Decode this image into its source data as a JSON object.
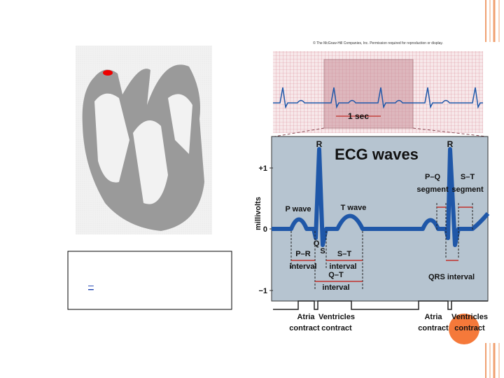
{
  "heart_box": {
    "link": "–"
  },
  "ecg": {
    "credit": "© The McGraw-Hill Companies, Inc. Permission required for reproduction or display.",
    "strip_label": "1 sec",
    "title": "ECG waves",
    "axis_label": "millivolts",
    "axis_ticks": [
      "+1",
      "0",
      "−1"
    ],
    "peaks": [
      "R",
      "R"
    ],
    "waves": [
      "P wave",
      "T wave",
      "Q",
      "S"
    ],
    "intervals": [
      {
        "line1": "P–R",
        "line2": "interval"
      },
      {
        "line1": "S–T",
        "line2": "interval"
      },
      {
        "line1": "Q–T",
        "line2": "interval"
      },
      {
        "line1": "P–Q",
        "line2": "segment"
      },
      {
        "line1": "S–T",
        "line2": "segment"
      }
    ],
    "qrs": "QRS interval",
    "contractions": [
      {
        "line1": "Atria",
        "line2": "contract"
      },
      {
        "line1": "Ventricles",
        "line2": "contract"
      },
      {
        "line1": "Atria",
        "line2": "contract"
      },
      {
        "line1": "Ventricles",
        "line2": "contract"
      }
    ]
  }
}
